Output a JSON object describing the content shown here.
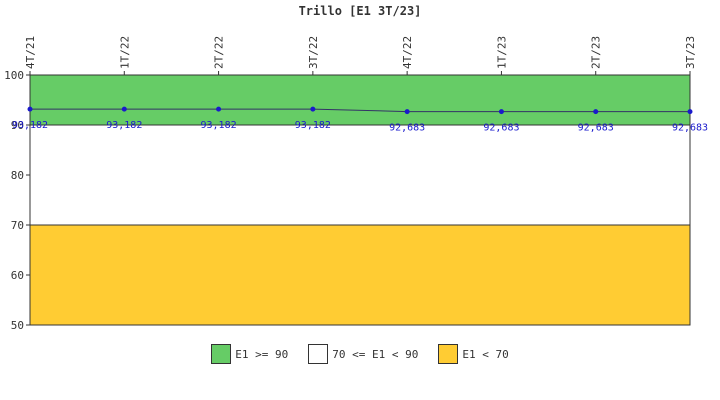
{
  "chart_data": {
    "type": "line",
    "title": "Trillo [E1 3T/23]",
    "categories": [
      "4T/21",
      "1T/22",
      "2T/22",
      "3T/22",
      "4T/22",
      "1T/23",
      "2T/23",
      "3T/23"
    ],
    "series": [
      {
        "values": [
          93.182,
          93.182,
          93.182,
          93.182,
          92.683,
          92.683,
          92.683,
          92.683
        ],
        "labels": [
          "93,182",
          "93,182",
          "93,182",
          "93,182",
          "92,683",
          "92,683",
          "92,683",
          "92,683"
        ],
        "color": "#1a1acc"
      }
    ],
    "ylim": [
      50,
      100
    ],
    "yticks": [
      50,
      60,
      70,
      80,
      90,
      100
    ],
    "bands": [
      {
        "from": 90,
        "to": 100,
        "color": "#66cc66"
      },
      {
        "from": 70,
        "to": 90,
        "color": "#ffffff"
      },
      {
        "from": 50,
        "to": 70,
        "color": "#ffcc33"
      }
    ],
    "legend": [
      {
        "label": "E1 >= 90",
        "color": "#66cc66"
      },
      {
        "label": "70 <= E1 < 90",
        "color": "#ffffff"
      },
      {
        "label": "E1 < 70",
        "color": "#ffcc33"
      }
    ],
    "legend_position": "bottom",
    "grid": false
  }
}
